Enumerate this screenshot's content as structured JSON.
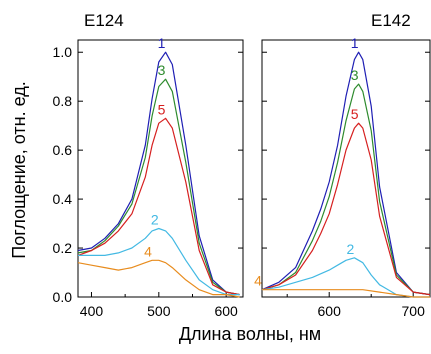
{
  "chart_data": [
    {
      "type": "line",
      "title": "E124",
      "xlim": [
        380,
        625
      ],
      "ylim": [
        0,
        1.05
      ],
      "xticks": [
        400,
        500,
        600
      ],
      "yticks": [
        0.0,
        0.2,
        0.4,
        0.6,
        0.8,
        1.0
      ],
      "ylabel": "Поглощение, отн. ед.",
      "xlabel": "Длина волны, нм",
      "series": [
        {
          "name": "1",
          "color": "#1f1fb4",
          "x": [
            380,
            400,
            420,
            440,
            460,
            480,
            490,
            500,
            510,
            520,
            540,
            560,
            580,
            600,
            620
          ],
          "y": [
            0.19,
            0.2,
            0.24,
            0.3,
            0.4,
            0.62,
            0.81,
            0.96,
            1.0,
            0.95,
            0.62,
            0.25,
            0.07,
            0.02,
            0.01
          ]
        },
        {
          "name": "3",
          "color": "#2e8b2e",
          "x": [
            380,
            400,
            420,
            440,
            460,
            480,
            490,
            500,
            510,
            520,
            540,
            560,
            580,
            600,
            620
          ],
          "y": [
            0.18,
            0.19,
            0.23,
            0.29,
            0.38,
            0.57,
            0.74,
            0.86,
            0.89,
            0.84,
            0.55,
            0.22,
            0.06,
            0.02,
            0.01
          ]
        },
        {
          "name": "5",
          "color": "#d62020",
          "x": [
            380,
            400,
            420,
            440,
            460,
            480,
            490,
            500,
            510,
            520,
            540,
            560,
            580,
            600,
            620
          ],
          "y": [
            0.17,
            0.19,
            0.22,
            0.27,
            0.34,
            0.49,
            0.62,
            0.71,
            0.73,
            0.69,
            0.47,
            0.19,
            0.05,
            0.02,
            0.01
          ]
        },
        {
          "name": "2",
          "color": "#43b9e3",
          "x": [
            380,
            400,
            420,
            440,
            460,
            480,
            490,
            500,
            510,
            520,
            540,
            560,
            580,
            600,
            620
          ],
          "y": [
            0.17,
            0.17,
            0.17,
            0.18,
            0.2,
            0.24,
            0.27,
            0.28,
            0.27,
            0.24,
            0.15,
            0.07,
            0.03,
            0.01,
            0.01
          ]
        },
        {
          "name": "4",
          "color": "#e88c1e",
          "x": [
            380,
            400,
            420,
            440,
            460,
            480,
            490,
            500,
            510,
            520,
            540,
            560,
            580,
            600,
            620
          ],
          "y": [
            0.14,
            0.13,
            0.12,
            0.11,
            0.12,
            0.14,
            0.15,
            0.15,
            0.14,
            0.12,
            0.07,
            0.03,
            0.01,
            0.01,
            0.0
          ]
        }
      ]
    },
    {
      "type": "line",
      "title": "E142",
      "xlim": [
        520,
        720
      ],
      "ylim": [
        0,
        1.05
      ],
      "xticks": [
        600,
        700
      ],
      "xlabel": "Длина волны, нм",
      "series": [
        {
          "name": "1",
          "color": "#1f1fb4",
          "x": [
            520,
            540,
            560,
            580,
            590,
            600,
            610,
            620,
            630,
            635,
            640,
            650,
            660,
            680,
            700,
            720
          ],
          "y": [
            0.03,
            0.06,
            0.12,
            0.27,
            0.36,
            0.47,
            0.62,
            0.82,
            0.97,
            1.0,
            0.97,
            0.78,
            0.45,
            0.1,
            0.02,
            0.01
          ]
        },
        {
          "name": "3",
          "color": "#2e8b2e",
          "x": [
            520,
            540,
            560,
            580,
            590,
            600,
            610,
            620,
            630,
            635,
            640,
            650,
            660,
            680,
            700,
            720
          ],
          "y": [
            0.03,
            0.05,
            0.1,
            0.23,
            0.31,
            0.41,
            0.55,
            0.72,
            0.85,
            0.87,
            0.84,
            0.68,
            0.39,
            0.09,
            0.02,
            0.01
          ]
        },
        {
          "name": "5",
          "color": "#d62020",
          "x": [
            520,
            540,
            560,
            580,
            590,
            600,
            610,
            620,
            630,
            635,
            640,
            650,
            660,
            680,
            700,
            720
          ],
          "y": [
            0.03,
            0.05,
            0.09,
            0.19,
            0.26,
            0.34,
            0.46,
            0.6,
            0.69,
            0.71,
            0.69,
            0.56,
            0.33,
            0.08,
            0.02,
            0.01
          ]
        },
        {
          "name": "2",
          "color": "#43b9e3",
          "x": [
            520,
            540,
            560,
            580,
            600,
            610,
            620,
            630,
            640,
            650,
            660,
            680,
            700,
            720
          ],
          "y": [
            0.03,
            0.04,
            0.06,
            0.08,
            0.11,
            0.13,
            0.15,
            0.16,
            0.14,
            0.09,
            0.05,
            0.01,
            0.0,
            0.0
          ]
        },
        {
          "name": "4",
          "color": "#e88c1e",
          "x": [
            520,
            540,
            560,
            580,
            600,
            620,
            630,
            640,
            660,
            680,
            700,
            720
          ],
          "y": [
            0.03,
            0.03,
            0.03,
            0.03,
            0.03,
            0.03,
            0.03,
            0.03,
            0.02,
            0.01,
            0.0,
            0.0
          ]
        }
      ]
    }
  ]
}
